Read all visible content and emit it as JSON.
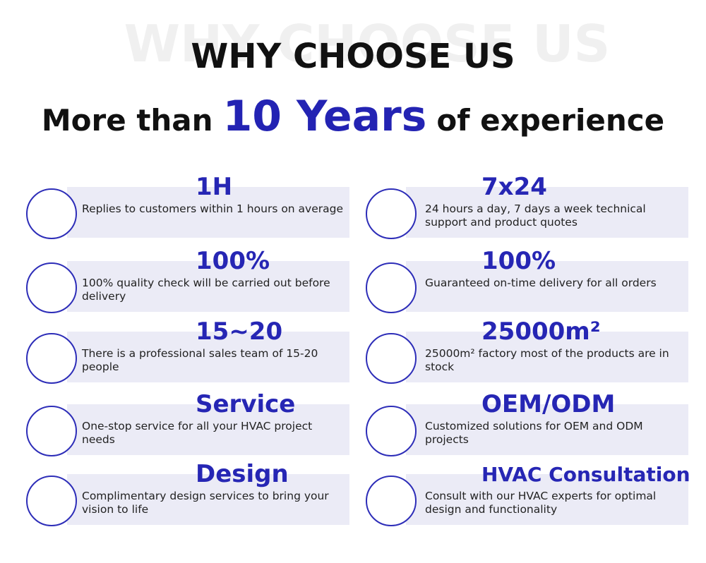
{
  "header": {
    "watermark": "WHY CHOOSE US",
    "title": "WHY CHOOSE US",
    "subtitle": {
      "before": "More than",
      "highlight": "10 Years",
      "after": "of experience"
    }
  },
  "items": [
    {
      "heading": "1H",
      "text": "Replies to customers within 1 hours on average"
    },
    {
      "heading": "7x24",
      "text": "24 hours a day, 7 days a week technical support and product quotes"
    },
    {
      "heading": "100%",
      "text": "100% quality check will be carried out before delivery"
    },
    {
      "heading": "100%",
      "text": "Guaranteed on-time delivery for all orders"
    },
    {
      "heading": "15~20",
      "text": "There is a professional sales team of 15-20 people"
    },
    {
      "heading": "25000m²",
      "text": "25000m² factory most of the products are in stock"
    },
    {
      "heading": "Service",
      "text": "One-stop service for all your HVAC project needs"
    },
    {
      "heading": "OEM/ODM",
      "text": "Customized solutions for OEM and ODM projects"
    },
    {
      "heading": "Design",
      "text": "Complimentary design services to bring your vision to life"
    },
    {
      "heading": "HVAC Consultation",
      "text": "Consult with our HVAC experts for optimal design and functionality"
    }
  ]
}
